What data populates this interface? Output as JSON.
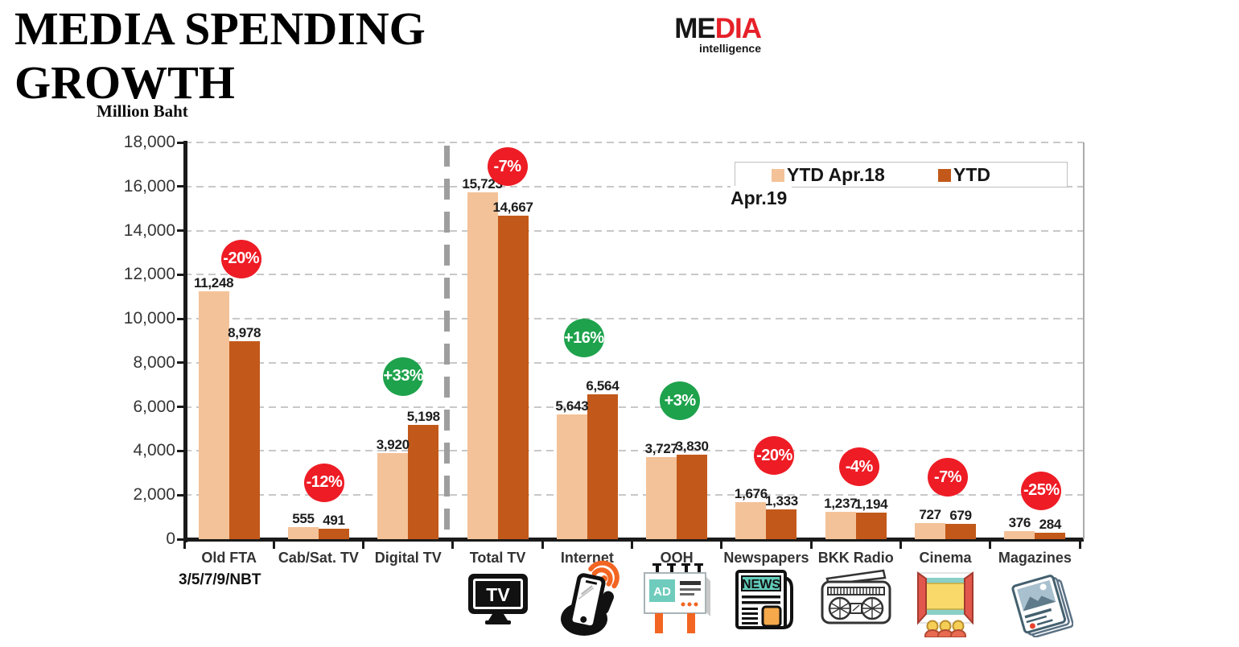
{
  "header": {
    "title_line1": "MEDIA SPENDING",
    "title_line2": "GROWTH",
    "units_label": "Million Baht"
  },
  "logo": {
    "text_black": "ME",
    "text_red": "DIA",
    "tagline": "intelligence"
  },
  "legend": {
    "item1_label": "YTD Apr.18",
    "item2_label_line1": "YTD",
    "item2_label_line2": "Apr.19"
  },
  "footnote": "3/5/7/9/NBT",
  "colors": {
    "series_light": "#F4C298",
    "series_dark": "#C2591A",
    "badge_positive": "#1EA24C",
    "badge_negative": "#EE1C25",
    "logo_red": "#E62129"
  },
  "chart_data": {
    "type": "bar",
    "title": "MEDIA SPENDING GROWTH",
    "ylabel": "Million Baht",
    "ylim": [
      0,
      18000
    ],
    "ytick_step": 2000,
    "grid": true,
    "legend_position": "top-right",
    "categories": [
      "Old FTA",
      "Cab/Sat. TV",
      "Digital TV",
      "Total TV",
      "Internet",
      "OOH",
      "Newspapers",
      "BKK Radio",
      "Cinema",
      "Magazines"
    ],
    "series": [
      {
        "name": "YTD Apr.18",
        "values": [
          11248,
          555,
          3920,
          15723,
          5643,
          3727,
          1676,
          1237,
          727,
          376
        ]
      },
      {
        "name": "YTD Apr.19",
        "values": [
          8978,
          491,
          5198,
          14667,
          6564,
          3830,
          1333,
          1194,
          679,
          284
        ]
      }
    ],
    "growth_labels": [
      "-20%",
      "-12%",
      "+33%",
      "-7%",
      "+16%",
      "+3%",
      "-20%",
      "-4%",
      "-7%",
      "-25%"
    ],
    "separator_after_category": "Digital TV",
    "category_icons": [
      "",
      "",
      "",
      "tv",
      "smartphone",
      "billboard",
      "newspaper",
      "radio",
      "cinema",
      "magazine"
    ]
  }
}
